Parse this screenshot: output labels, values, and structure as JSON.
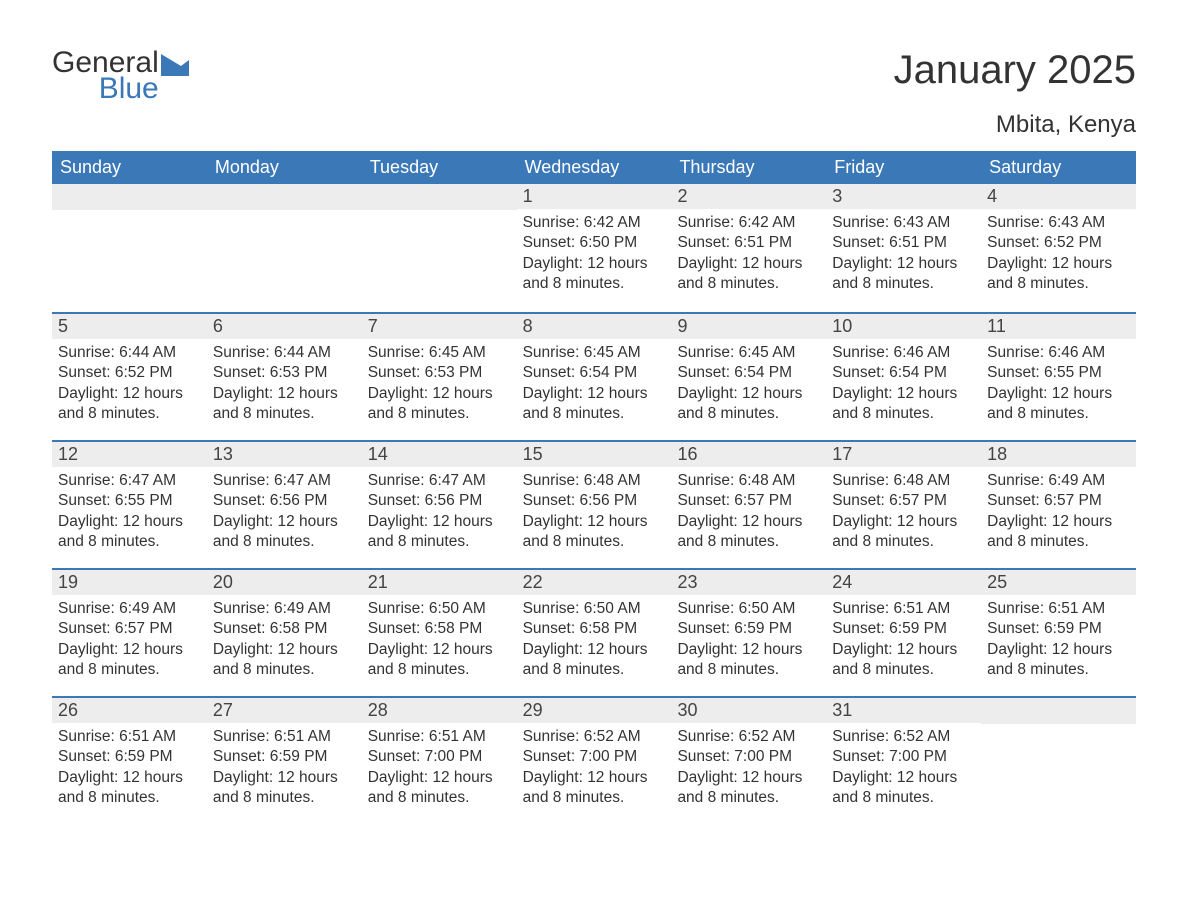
{
  "logo": {
    "general": "General",
    "blue": "Blue",
    "icon_color": "#3a78b8"
  },
  "title": "January 2025",
  "location": "Mbita, Kenya",
  "header_bg": "#3a78b8",
  "header_text_color": "#ffffff",
  "day_bar_bg": "#ededed",
  "day_headers": [
    "Sunday",
    "Monday",
    "Tuesday",
    "Wednesday",
    "Thursday",
    "Friday",
    "Saturday"
  ],
  "weeks": [
    [
      {
        "n": "",
        "sunrise": "",
        "sunset": "",
        "day": ""
      },
      {
        "n": "",
        "sunrise": "",
        "sunset": "",
        "day": ""
      },
      {
        "n": "",
        "sunrise": "",
        "sunset": "",
        "day": ""
      },
      {
        "n": "1",
        "sunrise": "Sunrise: 6:42 AM",
        "sunset": "Sunset: 6:50 PM",
        "day": "Daylight: 12 hours and 8 minutes."
      },
      {
        "n": "2",
        "sunrise": "Sunrise: 6:42 AM",
        "sunset": "Sunset: 6:51 PM",
        "day": "Daylight: 12 hours and 8 minutes."
      },
      {
        "n": "3",
        "sunrise": "Sunrise: 6:43 AM",
        "sunset": "Sunset: 6:51 PM",
        "day": "Daylight: 12 hours and 8 minutes."
      },
      {
        "n": "4",
        "sunrise": "Sunrise: 6:43 AM",
        "sunset": "Sunset: 6:52 PM",
        "day": "Daylight: 12 hours and 8 minutes."
      }
    ],
    [
      {
        "n": "5",
        "sunrise": "Sunrise: 6:44 AM",
        "sunset": "Sunset: 6:52 PM",
        "day": "Daylight: 12 hours and 8 minutes."
      },
      {
        "n": "6",
        "sunrise": "Sunrise: 6:44 AM",
        "sunset": "Sunset: 6:53 PM",
        "day": "Daylight: 12 hours and 8 minutes."
      },
      {
        "n": "7",
        "sunrise": "Sunrise: 6:45 AM",
        "sunset": "Sunset: 6:53 PM",
        "day": "Daylight: 12 hours and 8 minutes."
      },
      {
        "n": "8",
        "sunrise": "Sunrise: 6:45 AM",
        "sunset": "Sunset: 6:54 PM",
        "day": "Daylight: 12 hours and 8 minutes."
      },
      {
        "n": "9",
        "sunrise": "Sunrise: 6:45 AM",
        "sunset": "Sunset: 6:54 PM",
        "day": "Daylight: 12 hours and 8 minutes."
      },
      {
        "n": "10",
        "sunrise": "Sunrise: 6:46 AM",
        "sunset": "Sunset: 6:54 PM",
        "day": "Daylight: 12 hours and 8 minutes."
      },
      {
        "n": "11",
        "sunrise": "Sunrise: 6:46 AM",
        "sunset": "Sunset: 6:55 PM",
        "day": "Daylight: 12 hours and 8 minutes."
      }
    ],
    [
      {
        "n": "12",
        "sunrise": "Sunrise: 6:47 AM",
        "sunset": "Sunset: 6:55 PM",
        "day": "Daylight: 12 hours and 8 minutes."
      },
      {
        "n": "13",
        "sunrise": "Sunrise: 6:47 AM",
        "sunset": "Sunset: 6:56 PM",
        "day": "Daylight: 12 hours and 8 minutes."
      },
      {
        "n": "14",
        "sunrise": "Sunrise: 6:47 AM",
        "sunset": "Sunset: 6:56 PM",
        "day": "Daylight: 12 hours and 8 minutes."
      },
      {
        "n": "15",
        "sunrise": "Sunrise: 6:48 AM",
        "sunset": "Sunset: 6:56 PM",
        "day": "Daylight: 12 hours and 8 minutes."
      },
      {
        "n": "16",
        "sunrise": "Sunrise: 6:48 AM",
        "sunset": "Sunset: 6:57 PM",
        "day": "Daylight: 12 hours and 8 minutes."
      },
      {
        "n": "17",
        "sunrise": "Sunrise: 6:48 AM",
        "sunset": "Sunset: 6:57 PM",
        "day": "Daylight: 12 hours and 8 minutes."
      },
      {
        "n": "18",
        "sunrise": "Sunrise: 6:49 AM",
        "sunset": "Sunset: 6:57 PM",
        "day": "Daylight: 12 hours and 8 minutes."
      }
    ],
    [
      {
        "n": "19",
        "sunrise": "Sunrise: 6:49 AM",
        "sunset": "Sunset: 6:57 PM",
        "day": "Daylight: 12 hours and 8 minutes."
      },
      {
        "n": "20",
        "sunrise": "Sunrise: 6:49 AM",
        "sunset": "Sunset: 6:58 PM",
        "day": "Daylight: 12 hours and 8 minutes."
      },
      {
        "n": "21",
        "sunrise": "Sunrise: 6:50 AM",
        "sunset": "Sunset: 6:58 PM",
        "day": "Daylight: 12 hours and 8 minutes."
      },
      {
        "n": "22",
        "sunrise": "Sunrise: 6:50 AM",
        "sunset": "Sunset: 6:58 PM",
        "day": "Daylight: 12 hours and 8 minutes."
      },
      {
        "n": "23",
        "sunrise": "Sunrise: 6:50 AM",
        "sunset": "Sunset: 6:59 PM",
        "day": "Daylight: 12 hours and 8 minutes."
      },
      {
        "n": "24",
        "sunrise": "Sunrise: 6:51 AM",
        "sunset": "Sunset: 6:59 PM",
        "day": "Daylight: 12 hours and 8 minutes."
      },
      {
        "n": "25",
        "sunrise": "Sunrise: 6:51 AM",
        "sunset": "Sunset: 6:59 PM",
        "day": "Daylight: 12 hours and 8 minutes."
      }
    ],
    [
      {
        "n": "26",
        "sunrise": "Sunrise: 6:51 AM",
        "sunset": "Sunset: 6:59 PM",
        "day": "Daylight: 12 hours and 8 minutes."
      },
      {
        "n": "27",
        "sunrise": "Sunrise: 6:51 AM",
        "sunset": "Sunset: 6:59 PM",
        "day": "Daylight: 12 hours and 8 minutes."
      },
      {
        "n": "28",
        "sunrise": "Sunrise: 6:51 AM",
        "sunset": "Sunset: 7:00 PM",
        "day": "Daylight: 12 hours and 8 minutes."
      },
      {
        "n": "29",
        "sunrise": "Sunrise: 6:52 AM",
        "sunset": "Sunset: 7:00 PM",
        "day": "Daylight: 12 hours and 8 minutes."
      },
      {
        "n": "30",
        "sunrise": "Sunrise: 6:52 AM",
        "sunset": "Sunset: 7:00 PM",
        "day": "Daylight: 12 hours and 8 minutes."
      },
      {
        "n": "31",
        "sunrise": "Sunrise: 6:52 AM",
        "sunset": "Sunset: 7:00 PM",
        "day": "Daylight: 12 hours and 8 minutes."
      },
      {
        "n": "",
        "sunrise": "",
        "sunset": "",
        "day": ""
      }
    ]
  ]
}
